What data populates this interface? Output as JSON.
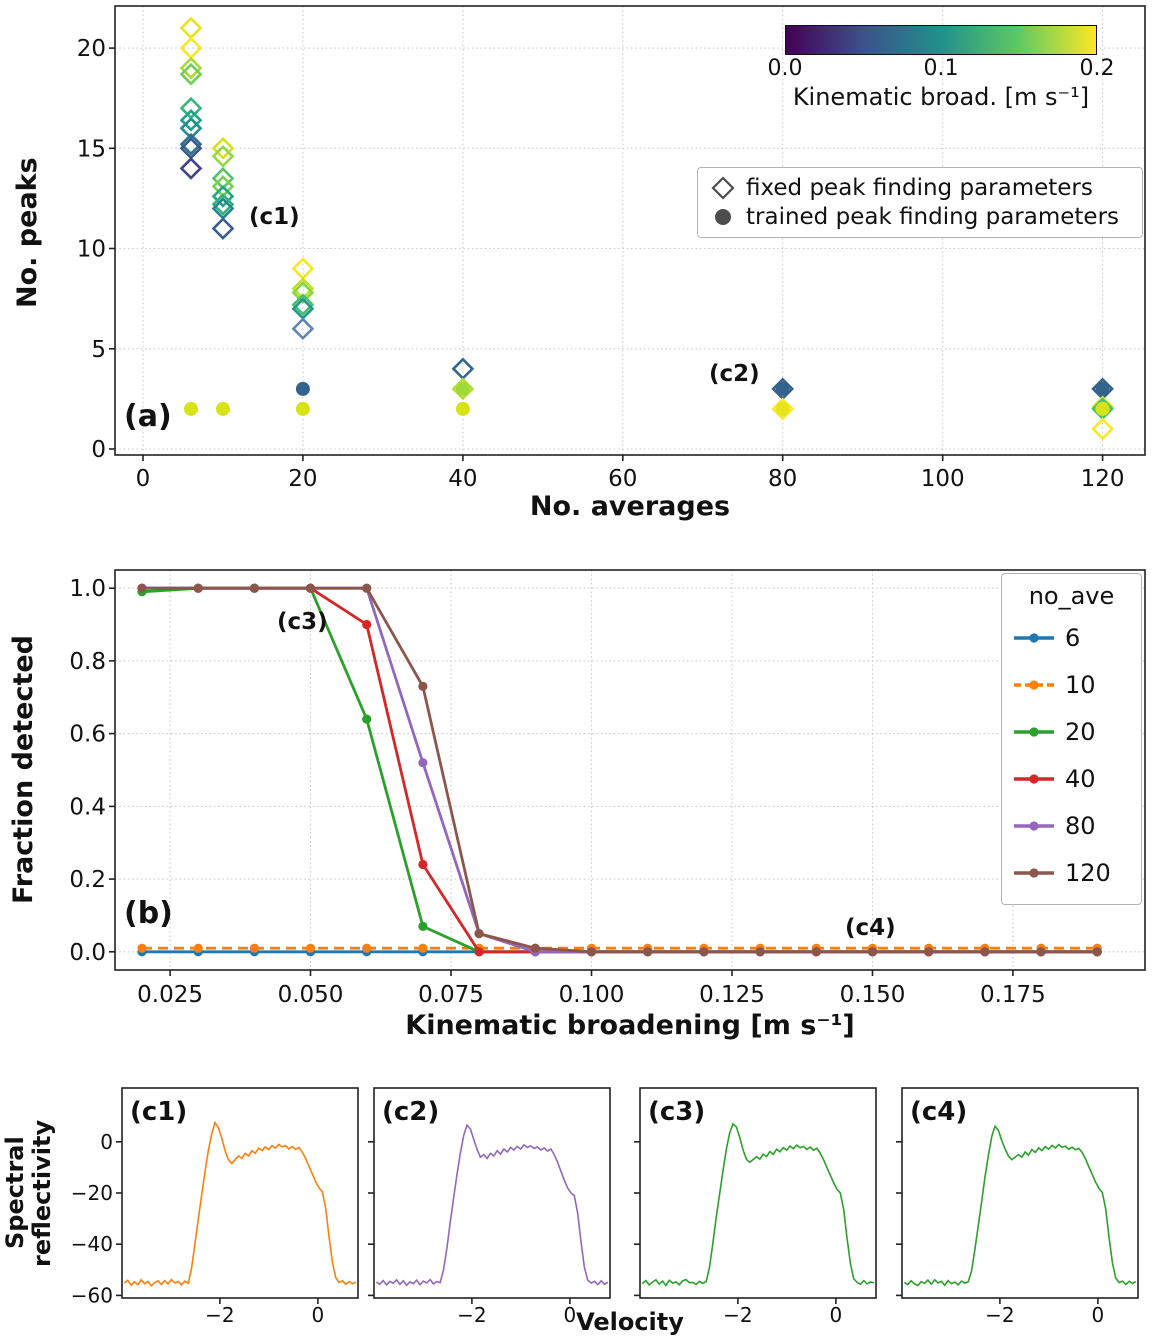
{
  "c_row": {
    "ylabel": "Spectral\nreflectivity",
    "xlabel": "Velocity"
  },
  "chart_data": [
    {
      "id": "a",
      "type": "scatter",
      "panel_label": "(a)",
      "xlabel": "No. averages",
      "ylabel": "No. peaks",
      "xlim": [
        -3.5,
        125.3
      ],
      "ylim": [
        -0.3,
        22.1
      ],
      "xticks": [
        0,
        20,
        40,
        60,
        80,
        100,
        120
      ],
      "yticks": [
        0,
        5,
        10,
        15,
        20
      ],
      "grid": true,
      "legend": [
        {
          "marker": "diamond",
          "label": "fixed peak finding parameters"
        },
        {
          "marker": "circle",
          "label": "trained peak finding parameters"
        }
      ],
      "colorbar": {
        "label": "Kinematic broad. [m s⁻¹]",
        "ticks": [
          "0.0",
          "0.1",
          "0.2"
        ],
        "range": [
          0.0,
          0.2
        ],
        "stops": [
          "#440154",
          "#3b528b",
          "#21918c",
          "#5ec962",
          "#fde725"
        ]
      },
      "fixed_points": [
        {
          "x": 6,
          "y": 21,
          "c": "#e8e419"
        },
        {
          "x": 6,
          "y": 20,
          "c": "#fde725"
        },
        {
          "x": 6,
          "y": 19,
          "c": "#a8db34"
        },
        {
          "x": 6,
          "y": 18.7,
          "c": "#6ece58"
        },
        {
          "x": 6,
          "y": 17,
          "c": "#35b779"
        },
        {
          "x": 6,
          "y": 16.4,
          "c": "#1fa287"
        },
        {
          "x": 6,
          "y": 16,
          "c": "#228b8d"
        },
        {
          "x": 6,
          "y": 15.2,
          "c": "#2d708e"
        },
        {
          "x": 6,
          "y": 15,
          "c": "#38588c"
        },
        {
          "x": 6,
          "y": 14,
          "c": "#414287"
        },
        {
          "x": 10,
          "y": 15,
          "c": "#d2e21b"
        },
        {
          "x": 10,
          "y": 14.6,
          "c": "#93d741"
        },
        {
          "x": 10,
          "y": 13.5,
          "c": "#54c568"
        },
        {
          "x": 10,
          "y": 13.1,
          "c": "#7ad151"
        },
        {
          "x": 10,
          "y": 12.6,
          "c": "#21a685"
        },
        {
          "x": 10,
          "y": 12.2,
          "c": "#2db27d"
        },
        {
          "x": 10,
          "y": 12,
          "c": "#25848e"
        },
        {
          "x": 10,
          "y": 11,
          "c": "#355e8d"
        },
        {
          "x": 20,
          "y": 9,
          "c": "#f8e621"
        },
        {
          "x": 20,
          "y": 8,
          "c": "#c5e021"
        },
        {
          "x": 20,
          "y": 7.8,
          "c": "#86d549"
        },
        {
          "x": 20,
          "y": 7.2,
          "c": "#44bf70"
        },
        {
          "x": 20,
          "y": 7,
          "c": "#23988a"
        },
        {
          "x": 20,
          "y": 6,
          "c": "#5f87b5"
        },
        {
          "x": 40,
          "y": 4,
          "c": "#31688e"
        },
        {
          "x": 40,
          "y": 3,
          "c": "#b5de2b"
        },
        {
          "x": 80,
          "y": 3,
          "c": "#33638d"
        },
        {
          "x": 80,
          "y": 2,
          "c": "#fde725"
        },
        {
          "x": 120,
          "y": 3,
          "c": "#33638d"
        },
        {
          "x": 120,
          "y": 2.1,
          "c": "#dce319"
        },
        {
          "x": 120,
          "y": 2,
          "c": "#4ac16d"
        },
        {
          "x": 120,
          "y": 1,
          "c": "#fde725"
        }
      ],
      "trained_points": [
        {
          "x": 6,
          "y": 2,
          "c": "#d8e219"
        },
        {
          "x": 10,
          "y": 2,
          "c": "#d8e219"
        },
        {
          "x": 20,
          "y": 3,
          "c": "#33638d"
        },
        {
          "x": 20,
          "y": 2,
          "c": "#d8e219"
        },
        {
          "x": 40,
          "y": 3,
          "c": "#a0da39"
        },
        {
          "x": 40,
          "y": 2,
          "c": "#d8e219"
        },
        {
          "x": 80,
          "y": 3,
          "c": "#33638d"
        },
        {
          "x": 80,
          "y": 2,
          "c": "#e7e419"
        },
        {
          "x": 120,
          "y": 3,
          "c": "#33638d"
        },
        {
          "x": 120,
          "y": 2,
          "c": "#d8e219"
        }
      ],
      "annotations": [
        {
          "text": "(c1)",
          "x": 13.5,
          "y": 11.1
        },
        {
          "text": "(c2)",
          "x": 71,
          "y": 3.6
        }
      ]
    },
    {
      "id": "b",
      "type": "line",
      "panel_label": "(b)",
      "xlabel": "Kinematic broadening [m s⁻¹]",
      "ylabel": "Fraction detected",
      "xlim": [
        0.0152,
        0.1985
      ],
      "ylim": [
        -0.05,
        1.05
      ],
      "xticks": [
        0.025,
        0.05,
        0.075,
        0.1,
        0.125,
        0.15,
        0.175
      ],
      "xtick_labels": [
        "0.025",
        "0.050",
        "0.075",
        "0.100",
        "0.125",
        "0.150",
        "0.175"
      ],
      "yticks": [
        0,
        0.2,
        0.4,
        0.6,
        0.8,
        1
      ],
      "ytick_labels": [
        "0.0",
        "0.2",
        "0.4",
        "0.6",
        "0.8",
        "1.0"
      ],
      "grid": true,
      "legend_title": "no_ave",
      "legend_position": "upper right",
      "x": [
        0.02,
        0.03,
        0.04,
        0.05,
        0.06,
        0.07,
        0.08,
        0.09,
        0.1,
        0.11,
        0.12,
        0.13,
        0.14,
        0.15,
        0.16,
        0.17,
        0.18,
        0.19
      ],
      "series": [
        {
          "name": "6",
          "color": "#1f77b4",
          "dash": "solid",
          "values": [
            0,
            0,
            0,
            0,
            0,
            0,
            0,
            0,
            0,
            0,
            0,
            0,
            0,
            0,
            0,
            0,
            0,
            0
          ]
        },
        {
          "name": "10",
          "color": "#ff7f0e",
          "dash": "dashed",
          "values": [
            0.01,
            0.01,
            0.01,
            0.01,
            0.01,
            0.01,
            0.01,
            0.01,
            0.01,
            0.01,
            0.01,
            0.01,
            0.01,
            0.01,
            0.01,
            0.01,
            0.01,
            0.01
          ]
        },
        {
          "name": "20",
          "color": "#2ca02c",
          "dash": "solid",
          "values": [
            0.99,
            1,
            1,
            1,
            0.64,
            0.07,
            0,
            0,
            0,
            0,
            0,
            0,
            0,
            0,
            0,
            0,
            0,
            0
          ]
        },
        {
          "name": "40",
          "color": "#d62728",
          "dash": "solid",
          "values": [
            1,
            1,
            1,
            1,
            0.9,
            0.24,
            0,
            0,
            0,
            0,
            0,
            0,
            0,
            0,
            0,
            0,
            0,
            0
          ]
        },
        {
          "name": "80",
          "color": "#9467bd",
          "dash": "solid",
          "values": [
            1,
            1,
            1,
            1,
            1,
            0.52,
            0.05,
            0,
            0,
            0,
            0,
            0,
            0,
            0,
            0,
            0,
            0,
            0
          ]
        },
        {
          "name": "120",
          "color": "#8c564b",
          "dash": "solid",
          "values": [
            1,
            1,
            1,
            1,
            1,
            0.73,
            0.05,
            0.01,
            0,
            0,
            0,
            0,
            0,
            0,
            0,
            0,
            0,
            0
          ]
        }
      ],
      "annotations": [
        {
          "text": "(c3)",
          "x": 0.044,
          "y": 0.9
        },
        {
          "text": "(c4)",
          "x": 0.146,
          "y": 0.05
        }
      ]
    },
    {
      "id": "c1",
      "type": "line",
      "panel_label": "(c1)",
      "color": "#ff7f0e",
      "xlim": [
        -4.0,
        0.82
      ],
      "ylim": [
        -61,
        21
      ],
      "xticks": [
        -2,
        0
      ],
      "yticks": [
        0,
        -20,
        -40,
        -60
      ],
      "x_start": -3.95,
      "x_step": 0.0685,
      "values": [
        -55.2,
        -54.1,
        -56.0,
        -54.7,
        -55.8,
        -53.9,
        -55.4,
        -54.5,
        -56.2,
        -55.0,
        -54.3,
        -55.7,
        -54.2,
        -55.5,
        -53.8,
        -55.1,
        -54.6,
        -55.9,
        -54.4,
        -55.3,
        -49.5,
        -40.0,
        -30.5,
        -21.0,
        -12.0,
        -3.5,
        3.0,
        7.5,
        5.5,
        1.5,
        -3.5,
        -7.0,
        -8.5,
        -7.0,
        -5.5,
        -6.5,
        -4.5,
        -5.5,
        -3.5,
        -4.5,
        -2.5,
        -3.5,
        -2.0,
        -3.0,
        -1.5,
        -2.5,
        -1.0,
        -2.0,
        -1.5,
        -2.8,
        -1.8,
        -3.0,
        -2.2,
        -4.0,
        -6.5,
        -9.5,
        -12.5,
        -15.5,
        -18.0,
        -19.5,
        -26.0,
        -37.0,
        -47.0,
        -53.0,
        -55.0,
        -54.3,
        -55.7,
        -54.6,
        -55.4,
        -54.8
      ]
    },
    {
      "id": "c2",
      "type": "line",
      "panel_label": "(c2)",
      "color": "#9467bd",
      "xlim": [
        -4.0,
        0.82
      ],
      "ylim": [
        -61,
        21
      ],
      "xticks": [
        -2,
        0
      ],
      "yticks": [
        0,
        -20,
        -40,
        -60
      ],
      "x_start": -3.95,
      "x_step": 0.0685,
      "values": [
        -54.8,
        -55.6,
        -54.2,
        -55.9,
        -54.5,
        -55.2,
        -53.9,
        -55.7,
        -54.3,
        -56.0,
        -54.7,
        -55.4,
        -54.0,
        -55.8,
        -54.4,
        -55.1,
        -53.8,
        -55.5,
        -54.6,
        -55.0,
        -50.0,
        -41.5,
        -31.5,
        -22.0,
        -13.0,
        -4.5,
        2.5,
        6.5,
        5.0,
        1.0,
        -3.0,
        -6.0,
        -5.0,
        -6.5,
        -4.5,
        -5.5,
        -3.5,
        -4.8,
        -2.8,
        -4.0,
        -2.2,
        -3.2,
        -1.8,
        -2.8,
        -1.2,
        -2.2,
        -1.6,
        -2.6,
        -2.0,
        -3.2,
        -2.4,
        -3.6,
        -2.8,
        -5.0,
        -8.0,
        -11.5,
        -15.0,
        -18.0,
        -20.0,
        -21.0,
        -28.0,
        -39.0,
        -49.0,
        -54.0,
        -55.2,
        -54.5,
        -55.8,
        -54.3,
        -55.6,
        -54.9
      ]
    },
    {
      "id": "c3",
      "type": "line",
      "panel_label": "(c3)",
      "color": "#2ca02c",
      "xlim": [
        -4.0,
        0.82
      ],
      "ylim": [
        -61,
        21
      ],
      "xticks": [
        -2,
        0
      ],
      "yticks": [
        0,
        -20,
        -40,
        -60
      ],
      "x_start": -3.95,
      "x_step": 0.0685,
      "values": [
        -55.4,
        -54.2,
        -55.9,
        -54.8,
        -53.9,
        -55.6,
        -54.4,
        -56.1,
        -54.1,
        -55.2,
        -54.7,
        -55.8,
        -54.3,
        -53.8,
        -55.0,
        -54.9,
        -55.7,
        -54.5,
        -55.3,
        -54.6,
        -49.0,
        -39.5,
        -29.5,
        -20.5,
        -11.5,
        -3.0,
        3.5,
        7.0,
        5.8,
        1.8,
        -3.2,
        -6.8,
        -8.0,
        -6.9,
        -5.8,
        -6.8,
        -4.8,
        -5.8,
        -3.8,
        -4.9,
        -2.9,
        -3.9,
        -2.3,
        -3.3,
        -1.7,
        -2.7,
        -1.3,
        -2.3,
        -1.8,
        -3.0,
        -2.0,
        -3.3,
        -2.5,
        -4.5,
        -7.0,
        -10.0,
        -13.0,
        -16.0,
        -18.5,
        -20.0,
        -26.5,
        -37.5,
        -47.5,
        -53.5,
        -54.9,
        -55.6,
        -54.2,
        -55.5,
        -54.7,
        -55.1
      ]
    },
    {
      "id": "c4",
      "type": "line",
      "panel_label": "(c4)",
      "color": "#2ca02c",
      "xlim": [
        -4.0,
        0.82
      ],
      "ylim": [
        -61,
        21
      ],
      "xticks": [
        -2,
        0
      ],
      "yticks": [
        0,
        -20,
        -40,
        -60
      ],
      "x_start": -3.95,
      "x_step": 0.0685,
      "values": [
        -54.9,
        -55.8,
        -54.3,
        -55.5,
        -56.1,
        -54.6,
        -55.3,
        -54.0,
        -55.6,
        -53.9,
        -55.1,
        -54.5,
        -56.0,
        -54.2,
        -55.4,
        -54.8,
        -55.9,
        -54.4,
        -55.2,
        -54.7,
        -50.5,
        -42.0,
        -33.0,
        -23.5,
        -14.0,
        -5.5,
        2.0,
        6.0,
        4.5,
        0.5,
        -2.8,
        -5.5,
        -7.0,
        -6.0,
        -5.0,
        -6.0,
        -4.0,
        -5.2,
        -3.0,
        -4.2,
        -2.4,
        -3.4,
        -1.9,
        -2.9,
        -1.4,
        -2.4,
        -1.1,
        -2.1,
        -1.7,
        -2.9,
        -2.1,
        -3.1,
        -2.6,
        -4.2,
        -6.8,
        -9.8,
        -12.8,
        -15.8,
        -18.2,
        -19.8,
        -26.2,
        -37.2,
        -47.2,
        -53.2,
        -55.0,
        -54.4,
        -55.7,
        -54.5,
        -55.3,
        -54.6
      ]
    }
  ]
}
